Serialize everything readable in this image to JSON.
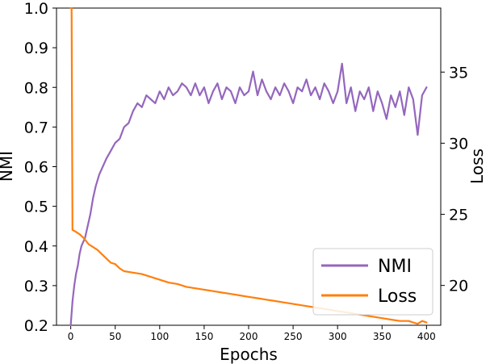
{
  "chart_data": {
    "type": "line",
    "title": "",
    "xlabel": "Epochs",
    "ylabel_left": "NMI",
    "ylabel_right": "Loss",
    "xlim": [
      -16,
      416
    ],
    "ylim_left": [
      0.2,
      1.0
    ],
    "ylim_right": [
      17.2,
      39.5
    ],
    "x_ticks": [
      0,
      50,
      100,
      150,
      200,
      250,
      300,
      350,
      400
    ],
    "y_left_ticks": [
      0.2,
      0.3,
      0.4,
      0.5,
      0.6,
      0.7,
      0.8,
      0.9,
      1.0
    ],
    "y_right_ticks": [
      20,
      25,
      30,
      35
    ],
    "legend_position": "lower-right",
    "grid": false,
    "series": [
      {
        "name": "NMI",
        "axis": "left",
        "color": "#9467bd",
        "x": [
          0,
          2,
          4,
          6,
          8,
          10,
          12,
          14,
          16,
          18,
          20,
          22,
          25,
          28,
          32,
          36,
          40,
          45,
          50,
          55,
          60,
          65,
          70,
          75,
          80,
          85,
          90,
          95,
          100,
          105,
          110,
          115,
          120,
          125,
          130,
          135,
          140,
          145,
          150,
          155,
          160,
          165,
          170,
          175,
          180,
          185,
          190,
          195,
          200,
          205,
          210,
          215,
          220,
          225,
          230,
          235,
          240,
          245,
          250,
          255,
          260,
          265,
          270,
          275,
          280,
          285,
          290,
          295,
          300,
          305,
          310,
          315,
          320,
          325,
          330,
          335,
          340,
          345,
          350,
          355,
          360,
          365,
          370,
          375,
          380,
          385,
          390,
          395,
          400
        ],
        "values": [
          0.2,
          0.26,
          0.3,
          0.33,
          0.35,
          0.38,
          0.4,
          0.41,
          0.42,
          0.44,
          0.46,
          0.48,
          0.52,
          0.55,
          0.58,
          0.6,
          0.62,
          0.64,
          0.66,
          0.67,
          0.7,
          0.71,
          0.74,
          0.76,
          0.75,
          0.78,
          0.77,
          0.76,
          0.79,
          0.77,
          0.8,
          0.78,
          0.79,
          0.81,
          0.8,
          0.78,
          0.81,
          0.78,
          0.8,
          0.76,
          0.79,
          0.81,
          0.77,
          0.8,
          0.79,
          0.76,
          0.8,
          0.78,
          0.79,
          0.84,
          0.78,
          0.82,
          0.79,
          0.77,
          0.8,
          0.78,
          0.81,
          0.79,
          0.76,
          0.8,
          0.79,
          0.82,
          0.78,
          0.8,
          0.77,
          0.81,
          0.79,
          0.76,
          0.79,
          0.86,
          0.76,
          0.8,
          0.74,
          0.79,
          0.77,
          0.8,
          0.74,
          0.79,
          0.76,
          0.72,
          0.78,
          0.75,
          0.79,
          0.73,
          0.8,
          0.77,
          0.68,
          0.78,
          0.8
        ]
      },
      {
        "name": "Loss",
        "axis": "right",
        "color": "#ff7f0e",
        "x": [
          0,
          1,
          2,
          5,
          10,
          15,
          20,
          25,
          30,
          35,
          40,
          45,
          50,
          55,
          60,
          70,
          80,
          90,
          100,
          110,
          120,
          130,
          140,
          150,
          160,
          170,
          180,
          190,
          200,
          210,
          220,
          230,
          240,
          250,
          260,
          270,
          280,
          290,
          300,
          310,
          320,
          330,
          340,
          350,
          360,
          370,
          380,
          385,
          390,
          395,
          400
        ],
        "values": [
          39.5,
          39.5,
          23.9,
          23.8,
          23.6,
          23.3,
          22.9,
          22.7,
          22.5,
          22.2,
          21.9,
          21.6,
          21.5,
          21.2,
          21.0,
          20.9,
          20.8,
          20.6,
          20.4,
          20.2,
          20.1,
          19.9,
          19.8,
          19.7,
          19.6,
          19.5,
          19.4,
          19.3,
          19.2,
          19.1,
          19.0,
          18.9,
          18.8,
          18.7,
          18.6,
          18.5,
          18.4,
          18.3,
          18.2,
          18.1,
          18.0,
          17.9,
          17.8,
          17.7,
          17.6,
          17.5,
          17.5,
          17.4,
          17.3,
          17.5,
          17.4
        ]
      }
    ]
  }
}
